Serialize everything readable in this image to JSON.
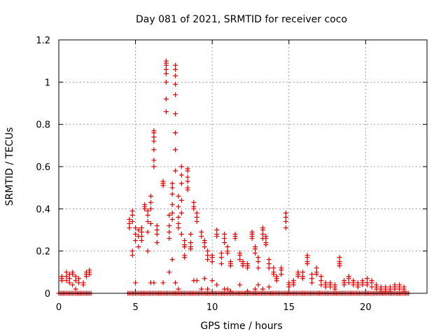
{
  "chart_data": {
    "type": "scatter",
    "title": "Day 081 of 2021, SRMTID for receiver coco",
    "xlabel": "GPS time / hours",
    "ylabel": "SRMTID / TECUs",
    "xlim": [
      0,
      24
    ],
    "ylim": [
      0,
      1.2
    ],
    "xticks": [
      0,
      5,
      10,
      15,
      20
    ],
    "yticks": [
      0,
      0.2,
      0.4,
      0.6,
      0.8,
      1,
      1.2
    ],
    "xtick_labels": [
      "0",
      "5",
      "10",
      "15",
      "20"
    ],
    "ytick_labels": [
      "0",
      "0.2",
      "0.4",
      "0.6",
      "0.8",
      "1",
      "1.2"
    ],
    "grid": true,
    "marker": "+",
    "series_color": "#e00000",
    "clusters": [
      {
        "x": 0.2,
        "y": [
          0.07,
          0.06,
          0.08,
          0.0
        ]
      },
      {
        "x": 0.5,
        "y": [
          0.1,
          0.08,
          0.06,
          0.0
        ]
      },
      {
        "x": 0.7,
        "y": [
          0.07,
          0.09,
          0.05,
          0.0
        ]
      },
      {
        "x": 0.9,
        "y": [
          0.1,
          0.09,
          0.04,
          0.0
        ]
      },
      {
        "x": 1.1,
        "y": [
          0.06,
          0.08,
          0.02,
          0.0
        ]
      },
      {
        "x": 1.3,
        "y": [
          0.07,
          0.05,
          0.0
        ]
      },
      {
        "x": 1.6,
        "y": [
          0.05,
          0.04,
          0.0
        ]
      },
      {
        "x": 1.8,
        "y": [
          0.1,
          0.09,
          0.08,
          0.0
        ]
      },
      {
        "x": 2.0,
        "y": [
          0.11,
          0.1,
          0.09,
          0.0
        ]
      },
      {
        "x": 4.6,
        "y": [
          0.33,
          0.31,
          0.35,
          0.0
        ]
      },
      {
        "x": 4.8,
        "y": [
          0.39,
          0.37,
          0.34,
          0.2,
          0.18,
          0.0
        ]
      },
      {
        "x": 5.0,
        "y": [
          0.31,
          0.28,
          0.25,
          0.05,
          0.0
        ]
      },
      {
        "x": 5.2,
        "y": [
          0.3,
          0.27,
          0.22,
          0.0
        ]
      },
      {
        "x": 5.4,
        "y": [
          0.25,
          0.27,
          0.29,
          0.31,
          0.0
        ]
      },
      {
        "x": 5.6,
        "y": [
          0.42,
          0.41,
          0.4,
          0.0
        ]
      },
      {
        "x": 5.8,
        "y": [
          0.39,
          0.37,
          0.34,
          0.29,
          0.2,
          0.0
        ]
      },
      {
        "x": 6.0,
        "y": [
          0.46,
          0.43,
          0.4,
          0.33,
          0.05,
          0.0
        ]
      },
      {
        "x": 6.2,
        "y": [
          0.77,
          0.76,
          0.74,
          0.72,
          0.68,
          0.63,
          0.6,
          0.05,
          0.0
        ]
      },
      {
        "x": 6.4,
        "y": [
          0.32,
          0.3,
          0.28,
          0.24,
          0.0
        ]
      },
      {
        "x": 6.8,
        "y": [
          0.53,
          0.52,
          0.51,
          0.05,
          0.0
        ]
      },
      {
        "x": 7.0,
        "y": [
          1.1,
          1.09,
          1.08,
          1.06,
          1.04,
          1.0,
          0.92,
          0.86,
          0.0
        ]
      },
      {
        "x": 7.2,
        "y": [
          0.37,
          0.32,
          0.29,
          0.26,
          0.1,
          0.0
        ]
      },
      {
        "x": 7.4,
        "y": [
          0.52,
          0.5,
          0.47,
          0.42,
          0.38,
          0.35,
          0.16,
          0.0
        ]
      },
      {
        "x": 7.6,
        "y": [
          1.08,
          1.06,
          1.03,
          0.99,
          0.94,
          0.85,
          0.76,
          0.68,
          0.58,
          0.05,
          0.0
        ]
      },
      {
        "x": 7.8,
        "y": [
          0.46,
          0.41,
          0.36,
          0.33,
          0.31,
          0.02,
          0.0
        ]
      },
      {
        "x": 8.0,
        "y": [
          0.6,
          0.56,
          0.52,
          0.44,
          0.38,
          0.28,
          0.0
        ]
      },
      {
        "x": 8.2,
        "y": [
          0.25,
          0.23,
          0.22,
          0.18,
          0.17,
          0.0
        ]
      },
      {
        "x": 8.4,
        "y": [
          0.59,
          0.58,
          0.55,
          0.53,
          0.5,
          0.49,
          0.0
        ]
      },
      {
        "x": 8.6,
        "y": [
          0.28,
          0.24,
          0.22,
          0.21,
          0.0
        ]
      },
      {
        "x": 8.8,
        "y": [
          0.43,
          0.41,
          0.4,
          0.06,
          0.0
        ]
      },
      {
        "x": 9.0,
        "y": [
          0.38,
          0.36,
          0.34,
          0.06,
          0.0
        ]
      },
      {
        "x": 9.3,
        "y": [
          0.29,
          0.27,
          0.02,
          0.0
        ]
      },
      {
        "x": 9.5,
        "y": [
          0.25,
          0.24,
          0.22,
          0.07,
          0.0
        ]
      },
      {
        "x": 9.7,
        "y": [
          0.2,
          0.18,
          0.16,
          0.02,
          0.0
        ]
      },
      {
        "x": 10.0,
        "y": [
          0.18,
          0.17,
          0.15,
          0.06,
          0.0
        ]
      },
      {
        "x": 10.3,
        "y": [
          0.3,
          0.28,
          0.27,
          0.04,
          0.0
        ]
      },
      {
        "x": 10.6,
        "y": [
          0.19,
          0.17,
          0.14,
          0.0
        ]
      },
      {
        "x": 10.8,
        "y": [
          0.28,
          0.26,
          0.24,
          0.02,
          0.0
        ]
      },
      {
        "x": 11.0,
        "y": [
          0.22,
          0.2,
          0.19,
          0.02,
          0.0
        ]
      },
      {
        "x": 11.2,
        "y": [
          0.15,
          0.14,
          0.13,
          0.01,
          0.0
        ]
      },
      {
        "x": 11.5,
        "y": [
          0.28,
          0.27,
          0.26,
          0.0
        ]
      },
      {
        "x": 11.8,
        "y": [
          0.19,
          0.18,
          0.16,
          0.04,
          0.0
        ]
      },
      {
        "x": 12.0,
        "y": [
          0.15,
          0.14,
          0.13,
          0.0
        ]
      },
      {
        "x": 12.3,
        "y": [
          0.14,
          0.13,
          0.12,
          0.01,
          0.0
        ]
      },
      {
        "x": 12.6,
        "y": [
          0.29,
          0.28,
          0.27,
          0.26,
          0.0
        ]
      },
      {
        "x": 12.8,
        "y": [
          0.22,
          0.21,
          0.19,
          0.02,
          0.0
        ]
      },
      {
        "x": 13.0,
        "y": [
          0.17,
          0.15,
          0.12,
          0.04,
          0.0
        ]
      },
      {
        "x": 13.3,
        "y": [
          0.31,
          0.3,
          0.28,
          0.26,
          0.02,
          0.0
        ]
      },
      {
        "x": 13.5,
        "y": [
          0.27,
          0.26,
          0.24,
          0.23,
          0.0
        ]
      },
      {
        "x": 13.7,
        "y": [
          0.16,
          0.14,
          0.12,
          0.03,
          0.0
        ]
      },
      {
        "x": 14.0,
        "y": [
          0.12,
          0.1,
          0.09,
          0.0
        ]
      },
      {
        "x": 14.2,
        "y": [
          0.08,
          0.07,
          0.06,
          0.0
        ]
      },
      {
        "x": 14.5,
        "y": [
          0.12,
          0.11,
          0.09,
          0.0
        ]
      },
      {
        "x": 14.8,
        "y": [
          0.38,
          0.36,
          0.34,
          0.31,
          0.0
        ]
      },
      {
        "x": 15.0,
        "y": [
          0.05,
          0.04,
          0.03,
          0.0
        ]
      },
      {
        "x": 15.3,
        "y": [
          0.06,
          0.05,
          0.04,
          0.0
        ]
      },
      {
        "x": 15.6,
        "y": [
          0.1,
          0.09,
          0.08,
          0.0
        ]
      },
      {
        "x": 15.9,
        "y": [
          0.1,
          0.08,
          0.07,
          0.0
        ]
      },
      {
        "x": 16.2,
        "y": [
          0.18,
          0.17,
          0.15,
          0.14,
          0.0
        ]
      },
      {
        "x": 16.5,
        "y": [
          0.09,
          0.07,
          0.05,
          0.0
        ]
      },
      {
        "x": 16.8,
        "y": [
          0.12,
          0.1,
          0.09,
          0.0
        ]
      },
      {
        "x": 17.1,
        "y": [
          0.08,
          0.06,
          0.04,
          0.0
        ]
      },
      {
        "x": 17.4,
        "y": [
          0.05,
          0.04,
          0.03,
          0.0
        ]
      },
      {
        "x": 17.7,
        "y": [
          0.05,
          0.04,
          0.03,
          0.0
        ]
      },
      {
        "x": 18.0,
        "y": [
          0.04,
          0.03,
          0.02,
          0.0
        ]
      },
      {
        "x": 18.3,
        "y": [
          0.17,
          0.15,
          0.14,
          0.13,
          0.0
        ]
      },
      {
        "x": 18.6,
        "y": [
          0.06,
          0.05,
          0.04,
          0.0
        ]
      },
      {
        "x": 18.9,
        "y": [
          0.08,
          0.07,
          0.05,
          0.0
        ]
      },
      {
        "x": 19.2,
        "y": [
          0.06,
          0.05,
          0.04,
          0.0
        ]
      },
      {
        "x": 19.5,
        "y": [
          0.05,
          0.04,
          0.03,
          0.0
        ]
      },
      {
        "x": 19.8,
        "y": [
          0.06,
          0.05,
          0.04,
          0.0
        ]
      },
      {
        "x": 20.1,
        "y": [
          0.07,
          0.05,
          0.04,
          0.0
        ]
      },
      {
        "x": 20.4,
        "y": [
          0.06,
          0.05,
          0.03,
          0.0
        ]
      },
      {
        "x": 20.7,
        "y": [
          0.04,
          0.03,
          0.02,
          0.0
        ]
      },
      {
        "x": 21.0,
        "y": [
          0.03,
          0.02,
          0.01,
          0.0
        ]
      },
      {
        "x": 21.3,
        "y": [
          0.03,
          0.02,
          0.01,
          0.0
        ]
      },
      {
        "x": 21.6,
        "y": [
          0.03,
          0.02,
          0.01,
          0.0
        ]
      },
      {
        "x": 21.9,
        "y": [
          0.04,
          0.03,
          0.02,
          0.0
        ]
      },
      {
        "x": 22.2,
        "y": [
          0.04,
          0.03,
          0.02,
          0.0
        ]
      },
      {
        "x": 22.5,
        "y": [
          0.03,
          0.02,
          0.01,
          0.0
        ]
      }
    ],
    "zero_band": {
      "start": 0.0,
      "end": 22.8,
      "step": 0.1,
      "gap": [
        2.2,
        4.5
      ]
    }
  }
}
